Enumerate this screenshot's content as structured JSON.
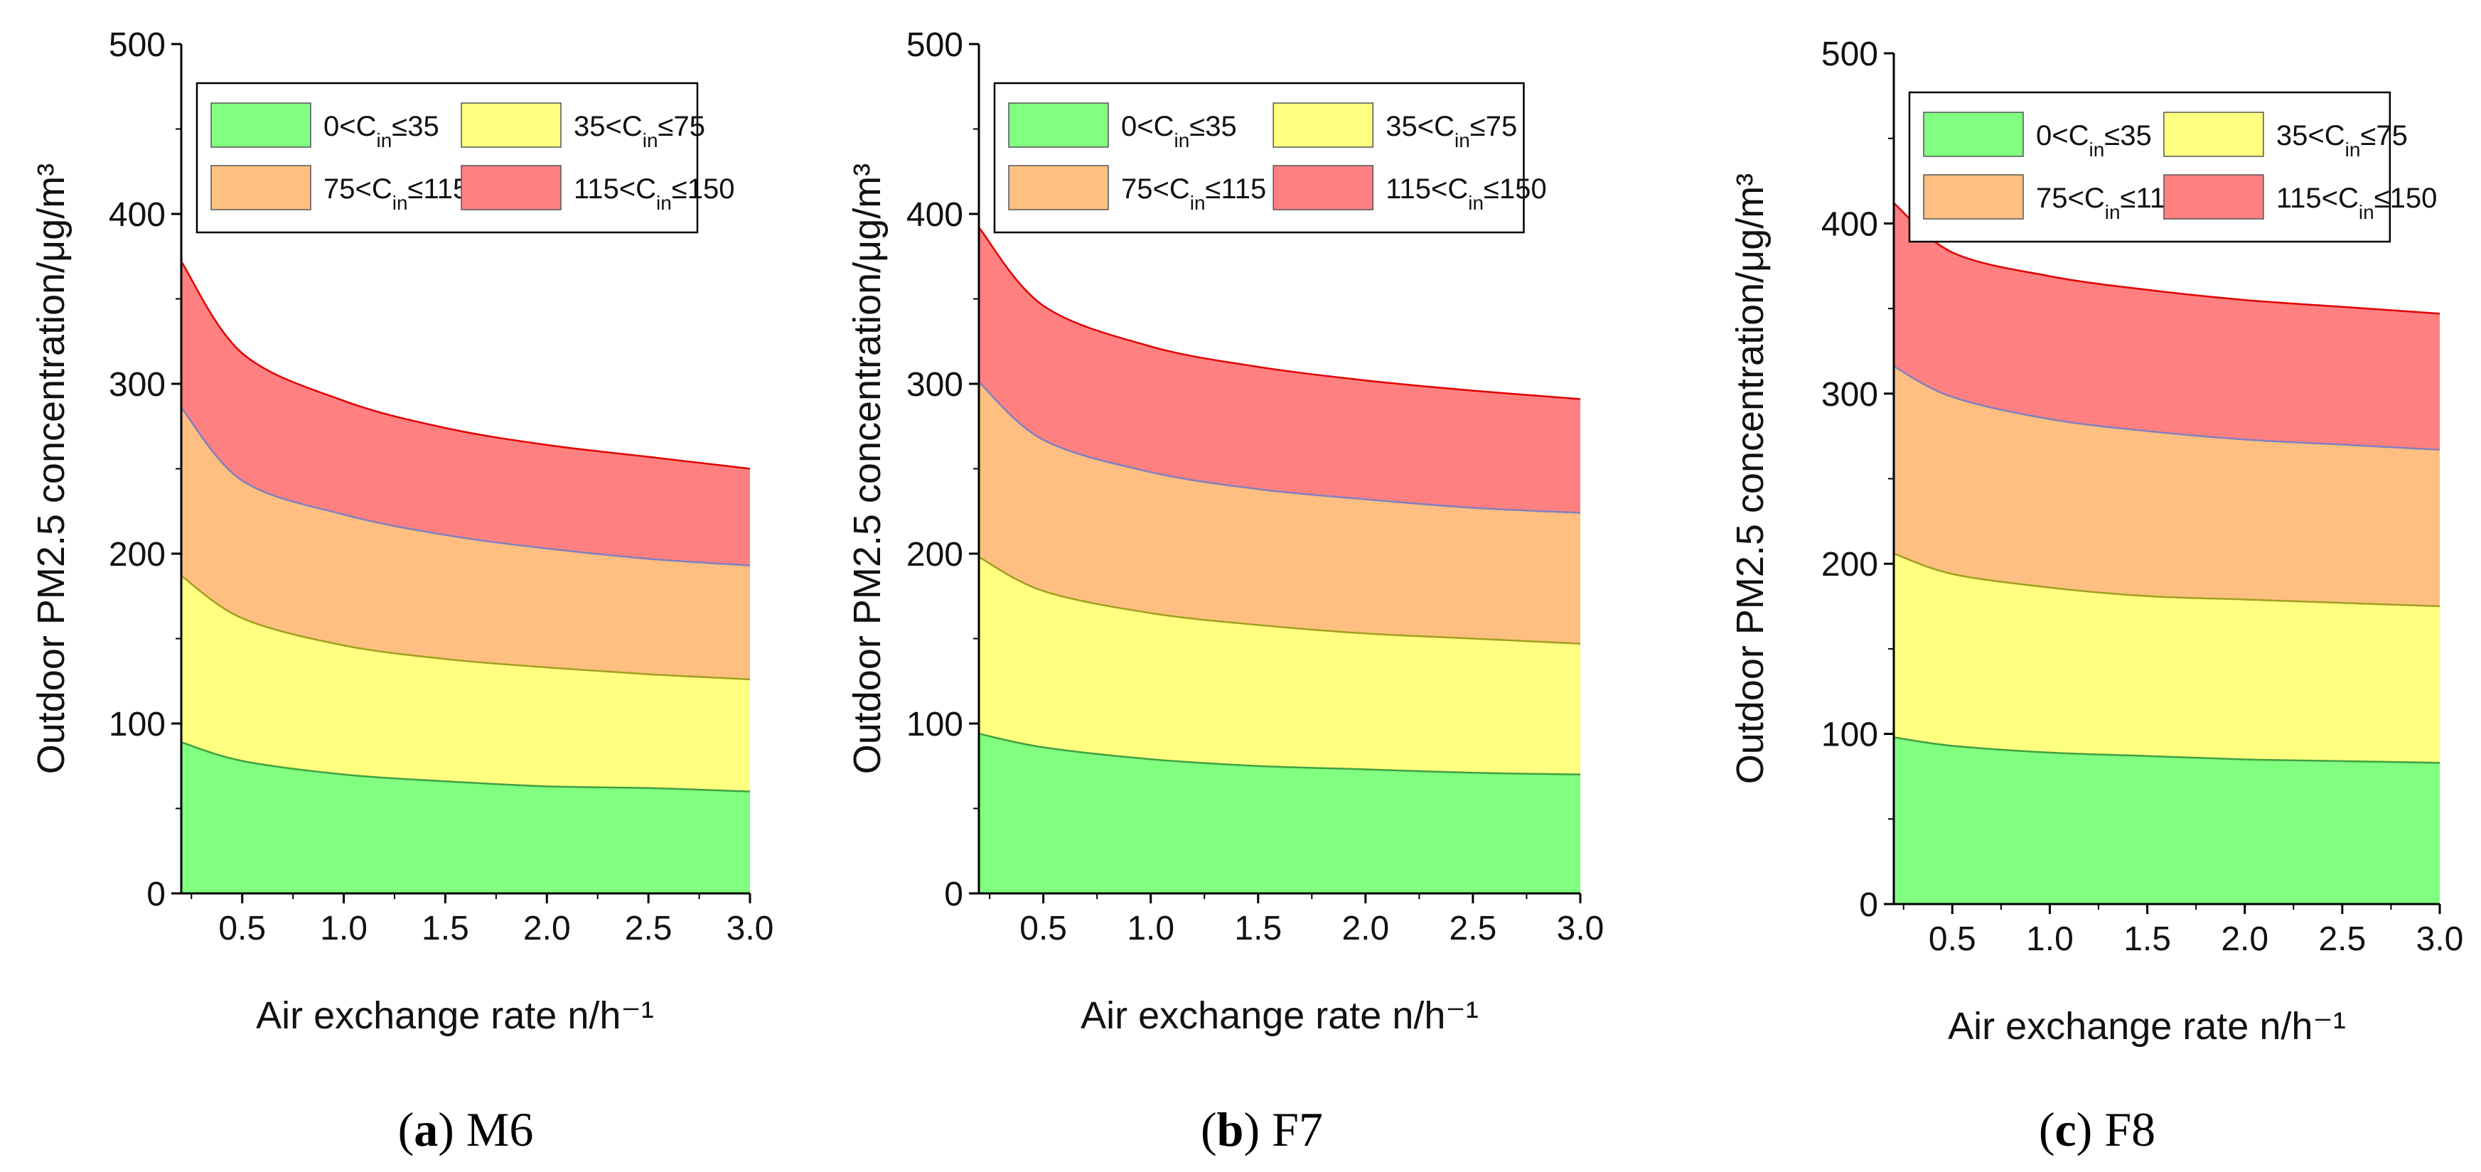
{
  "figure": {
    "legend_entries": [
      {
        "name": "0<C_in≤35",
        "parts": [
          "0<C",
          "in",
          "≤35"
        ],
        "color": "#80FF80"
      },
      {
        "name": "35<C_in≤75",
        "parts": [
          "35<C",
          "in",
          "≤75"
        ],
        "color": "#FFFF80"
      },
      {
        "name": "75<C_in≤115",
        "parts": [
          "75<C",
          "in",
          "≤115"
        ],
        "color": "#FFBF80"
      },
      {
        "name": "115<C_in≤150",
        "parts": [
          "115<C",
          "in",
          "≤150"
        ],
        "color": "#FF8080"
      }
    ]
  },
  "chart_data": [
    {
      "type": "area",
      "stacked_bands": true,
      "caption_letter": "a",
      "caption_text": "M6",
      "title": "",
      "xlabel": "Air exchange rate n/h⁻¹",
      "ylabel": "Outdoor PM2.5 concentration/μg/m³",
      "xlim": [
        0.2,
        3.0
      ],
      "ylim": [
        0,
        500
      ],
      "xticks": [
        "0.5",
        "1.0",
        "1.5",
        "2.0",
        "2.5",
        "3.0"
      ],
      "yticks": [
        "0",
        "100",
        "200",
        "300",
        "400",
        "500"
      ],
      "x": [
        0.2,
        0.5,
        1.0,
        1.5,
        2.0,
        2.5,
        3.0
      ],
      "series": [
        {
          "name": "0<C_in≤35",
          "values": [
            89,
            78,
            70,
            66,
            63,
            62,
            60
          ]
        },
        {
          "name": "35<C_in≤75",
          "values": [
            187,
            162,
            146,
            138,
            133,
            129,
            126
          ]
        },
        {
          "name": "75<C_in≤115",
          "values": [
            286,
            243,
            223,
            211,
            203,
            197,
            193
          ]
        },
        {
          "name": "115<C_in≤150",
          "values": [
            372,
            318,
            290,
            274,
            264,
            257,
            250
          ]
        }
      ]
    },
    {
      "type": "area",
      "stacked_bands": true,
      "caption_letter": "b",
      "caption_text": "F7",
      "title": "",
      "xlabel": "Air exchange rate n/h⁻¹",
      "ylabel": "Outdoor PM2.5 concentration/μg/m³",
      "xlim": [
        0.2,
        3.0
      ],
      "ylim": [
        0,
        500
      ],
      "xticks": [
        "0.5",
        "1.0",
        "1.5",
        "2.0",
        "2.5",
        "3.0"
      ],
      "yticks": [
        "0",
        "100",
        "200",
        "300",
        "400",
        "500"
      ],
      "x": [
        0.2,
        0.5,
        1.0,
        1.5,
        2.0,
        2.5,
        3.0
      ],
      "series": [
        {
          "name": "0<C_in≤35",
          "values": [
            94,
            86,
            79,
            75,
            73,
            71,
            70
          ]
        },
        {
          "name": "35<C_in≤75",
          "values": [
            198,
            178,
            165,
            158,
            153,
            150,
            147
          ]
        },
        {
          "name": "75<C_in≤115",
          "values": [
            301,
            267,
            248,
            238,
            232,
            227,
            224
          ]
        },
        {
          "name": "115<C_in≤150",
          "values": [
            392,
            346,
            322,
            310,
            302,
            296,
            291
          ]
        }
      ]
    },
    {
      "type": "area",
      "stacked_bands": true,
      "caption_letter": "c",
      "caption_text": "F8",
      "title": "",
      "xlabel": "Air exchange rate n/h⁻¹",
      "ylabel": "Outdoor PM2.5 concentration/μg/m³",
      "xlim": [
        0.2,
        3.0
      ],
      "ylim": [
        0,
        500
      ],
      "xticks": [
        "0.5",
        "1.0",
        "1.5",
        "2.0",
        "2.5",
        "3.0"
      ],
      "yticks": [
        "0",
        "100",
        "200",
        "300",
        "400",
        "500"
      ],
      "x": [
        0.2,
        0.5,
        1.0,
        1.5,
        2.0,
        2.5,
        3.0
      ],
      "series": [
        {
          "name": "0<C_in≤35",
          "values": [
            98,
            93,
            89,
            87,
            85,
            84,
            83
          ]
        },
        {
          "name": "35<C_in≤75",
          "values": [
            206,
            194,
            186,
            181,
            179,
            177,
            175
          ]
        },
        {
          "name": "75<C_in≤115",
          "values": [
            316,
            298,
            285,
            278,
            273,
            270,
            267
          ]
        },
        {
          "name": "115<C_in≤150",
          "values": [
            412,
            383,
            369,
            361,
            355,
            351,
            347
          ]
        }
      ]
    }
  ]
}
